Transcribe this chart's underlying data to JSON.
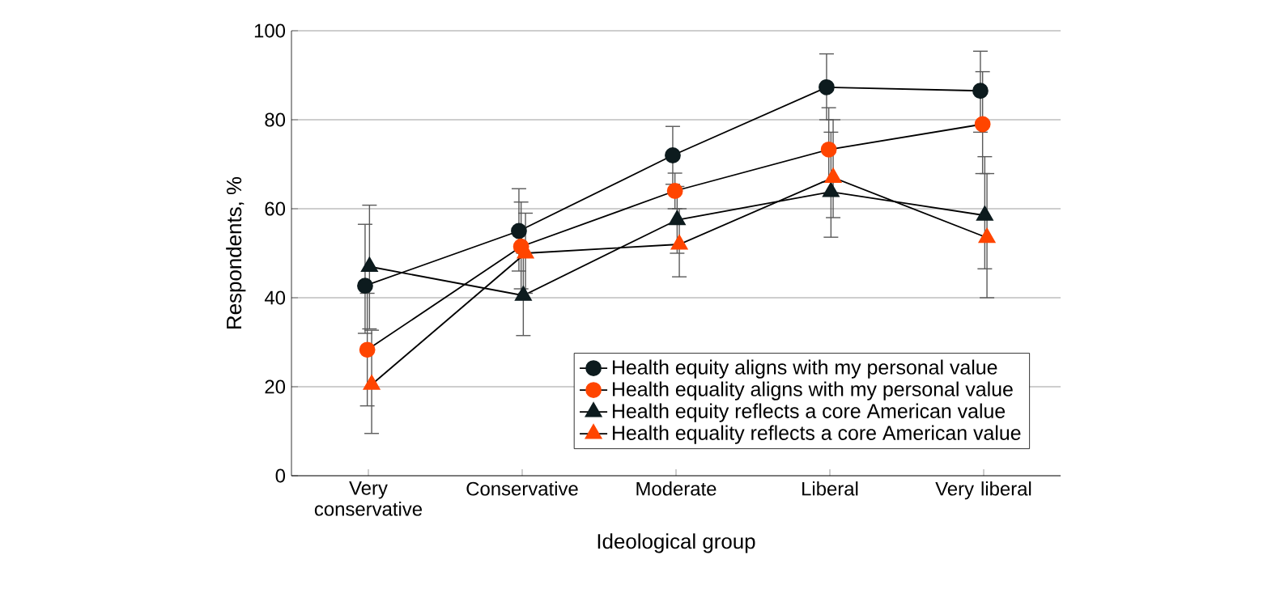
{
  "chart_data": {
    "type": "line",
    "xlabel": "Ideological group",
    "ylabel": "Respondents, %",
    "categories": [
      "Very conservative",
      "Conservative",
      "Moderate",
      "Liberal",
      "Very liberal"
    ],
    "ylim": [
      0,
      100
    ],
    "yticks": [
      0,
      20,
      40,
      60,
      80,
      100
    ],
    "grid": "y",
    "legend": "bottom right",
    "series": [
      {
        "name": "Health equity aligns with my personal value",
        "color": "#0d1b1e",
        "marker": "circle",
        "values": [
          42.7,
          55,
          72,
          87.3,
          86.5
        ],
        "errors": [
          [
            32,
            56.5
          ],
          [
            46,
            64.5
          ],
          [
            65.5,
            78.5
          ],
          [
            80,
            94.8
          ],
          [
            77.2,
            95.4
          ]
        ]
      },
      {
        "name": "Health equality aligns with my personal value",
        "color": "#ff4500",
        "marker": "circle",
        "values": [
          28.3,
          51.5,
          64,
          73.3,
          79
        ],
        "errors": [
          [
            15.7,
            41
          ],
          [
            42,
            61.5
          ],
          [
            60,
            68
          ],
          [
            66,
            82.7
          ],
          [
            67.9,
            90.8
          ]
        ]
      },
      {
        "name": "Health equity reflects a core American value",
        "color": "#0d1b1e",
        "marker": "triangle",
        "values": [
          47,
          40.5,
          57.5,
          63.8,
          58.5
        ],
        "errors": [
          [
            33,
            60.8
          ],
          [
            31.5,
            50
          ],
          [
            50,
            65
          ],
          [
            53.6,
            77.2
          ],
          [
            46.5,
            71.7
          ]
        ]
      },
      {
        "name": "Health equality reflects a core American value",
        "color": "#ff4500",
        "marker": "triangle",
        "values": [
          20.5,
          50,
          52,
          67,
          53.5
        ],
        "errors": [
          [
            9.5,
            32.7
          ],
          [
            41,
            59
          ],
          [
            44.7,
            60
          ],
          [
            58,
            80
          ],
          [
            40,
            67.9
          ]
        ]
      }
    ]
  }
}
